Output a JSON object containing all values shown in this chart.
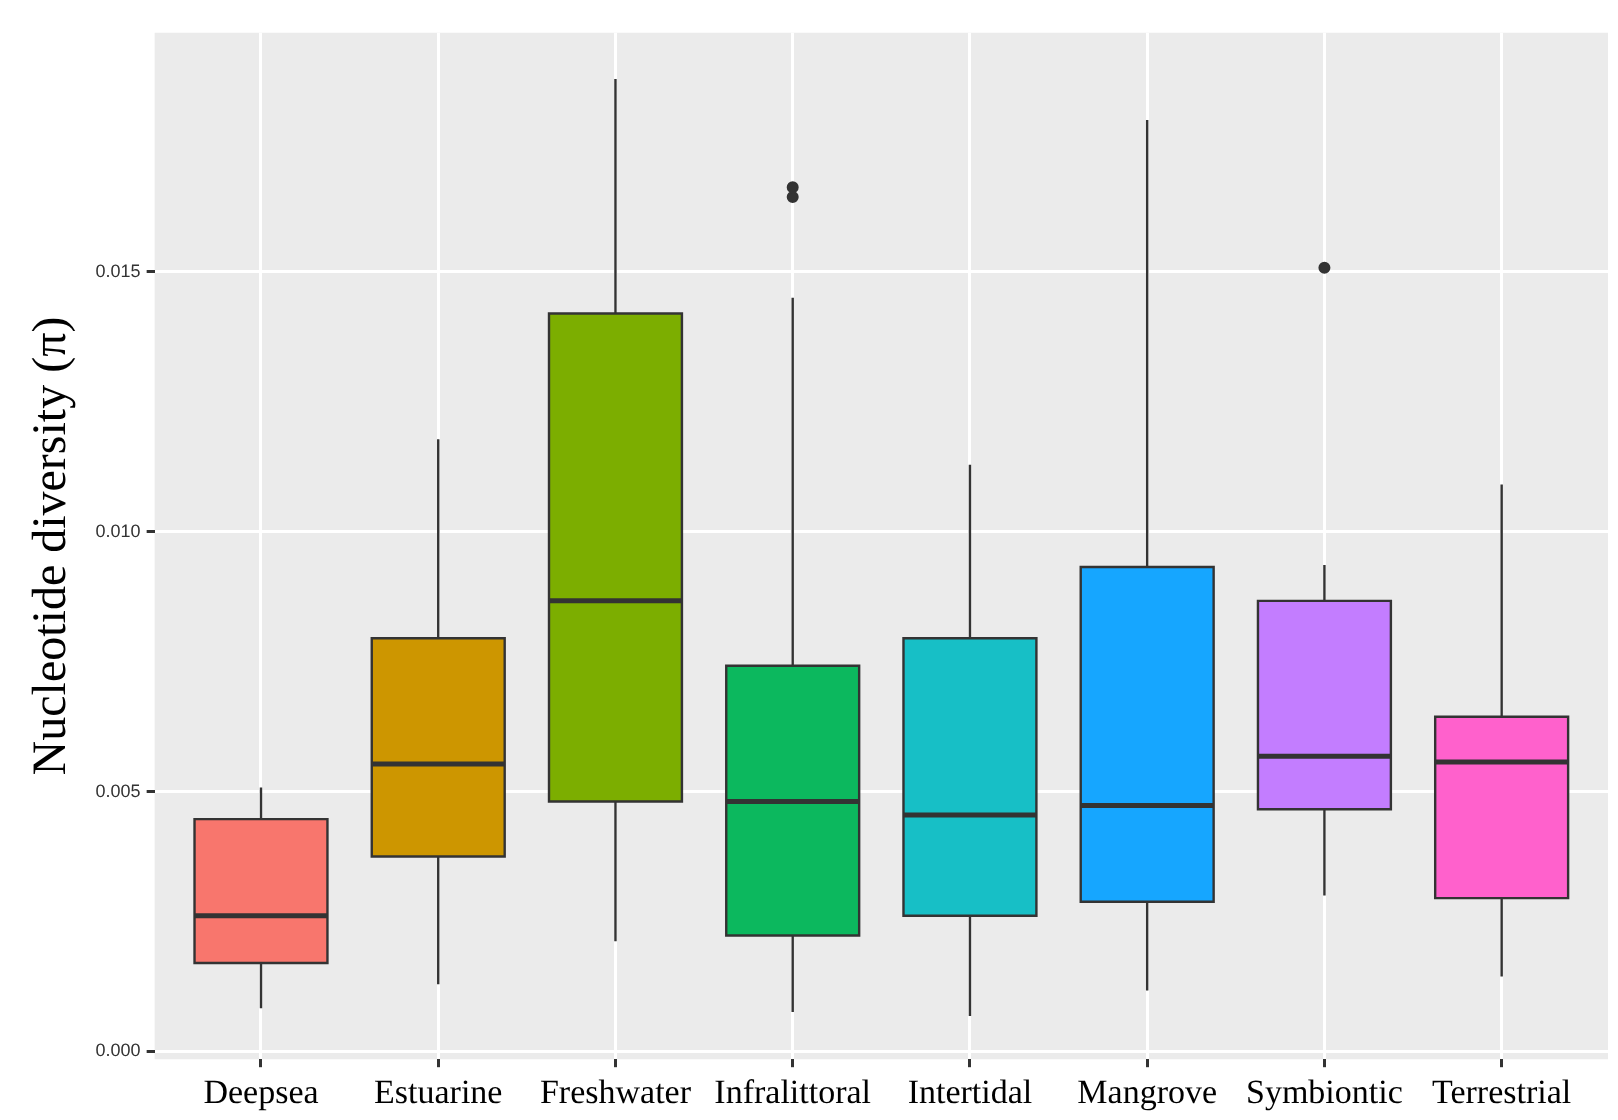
{
  "chart_data": {
    "type": "box",
    "ylabel": "Nucleotide diversity (π)",
    "categories": [
      "Deepsea",
      "Estuarine",
      "Freshwater",
      "Infralittoral",
      "Intertidal",
      "Mangrove",
      "Symbiontic",
      "Terrestrial"
    ],
    "colors": [
      "#f8766d",
      "#cd9600",
      "#7cae00",
      "#0cb85e",
      "#17bfc6",
      "#16a6ff",
      "#c37dff",
      "#ff61cc"
    ],
    "boxes": [
      {
        "low": 0.00083,
        "q1": 0.0017,
        "median": 0.00261,
        "q3": 0.00447,
        "high": 0.00508
      },
      {
        "low": 0.00129,
        "q1": 0.00375,
        "median": 0.00553,
        "q3": 0.00795,
        "high": 0.01178
      },
      {
        "low": 0.00212,
        "q1": 0.00481,
        "median": 0.00867,
        "q3": 0.0142,
        "high": 0.01871
      },
      {
        "low": 0.00076,
        "q1": 0.00223,
        "median": 0.00481,
        "q3": 0.00742,
        "high": 0.0145,
        "outliers": [
          0.01663,
          0.01644
        ]
      },
      {
        "low": 0.00068,
        "q1": 0.00261,
        "median": 0.00455,
        "q3": 0.00795,
        "high": 0.01129
      },
      {
        "low": 0.00117,
        "q1": 0.00288,
        "median": 0.00473,
        "q3": 0.00932,
        "high": 0.01792
      },
      {
        "low": 0.003,
        "q1": 0.00466,
        "median": 0.00568,
        "q3": 0.00867,
        "high": 0.00936,
        "outliers": [
          0.01508
        ]
      },
      {
        "low": 0.00144,
        "q1": 0.00295,
        "median": 0.00557,
        "q3": 0.00644,
        "high": 0.01091
      }
    ],
    "ylim": [
      -0.00015,
      0.0196
    ],
    "yticks": [
      {
        "value": 0,
        "label": "0.000"
      },
      {
        "value": 0.005,
        "label": "0.005"
      },
      {
        "value": 0.01,
        "label": "0.010"
      },
      {
        "value": 0.015,
        "label": "0.015"
      }
    ],
    "grid": true,
    "legend": false
  }
}
